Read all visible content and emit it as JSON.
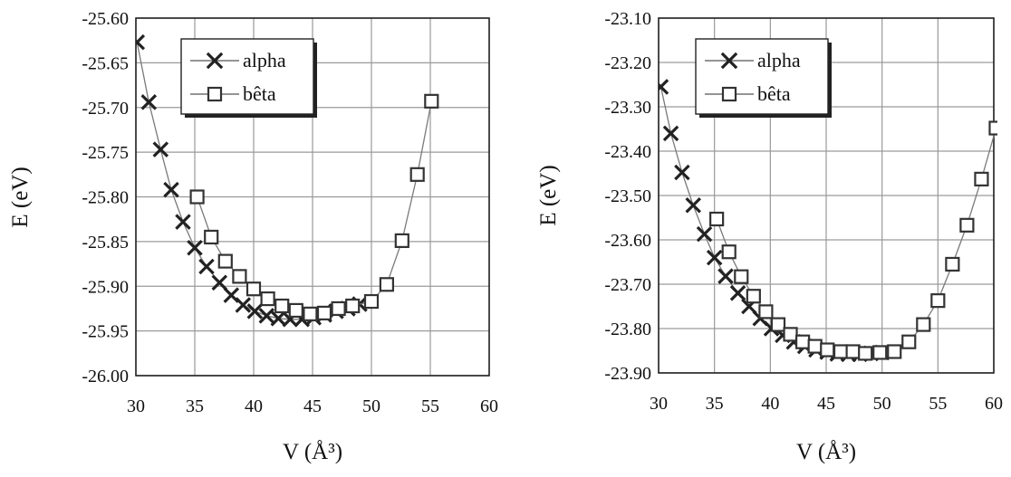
{
  "chart_data": [
    {
      "type": "scatter",
      "xlabel": "V (Å³)",
      "ylabel": "E (eV)",
      "xlim": [
        30,
        60
      ],
      "ylim": [
        -26.0,
        -25.6
      ],
      "xticks": [
        "30",
        "35",
        "40",
        "45",
        "50",
        "55",
        "60"
      ],
      "yticks": [
        "-25.60",
        "-25.65",
        "-25.70",
        "-25.75",
        "-25.80",
        "-25.85",
        "-25.90",
        "-25.95",
        "-26.00"
      ],
      "grid": true,
      "legend_position": "top-left",
      "series": [
        {
          "name": "alpha",
          "marker": "x",
          "x": [
            30.1,
            31.1,
            32.1,
            33.0,
            34.0,
            35.0,
            36.0,
            37.1,
            38.1,
            39.1,
            40.1,
            41.1,
            42.1,
            43.1,
            44.1,
            45.1,
            46.0,
            47.0,
            48.0,
            49.0
          ],
          "y": [
            -25.627,
            -25.694,
            -25.747,
            -25.792,
            -25.828,
            -25.857,
            -25.878,
            -25.896,
            -25.91,
            -25.921,
            -25.928,
            -25.933,
            -25.936,
            -25.937,
            -25.937,
            -25.935,
            -25.932,
            -25.928,
            -25.925,
            -25.92
          ]
        },
        {
          "name": "bêta",
          "marker": "square",
          "x": [
            35.2,
            36.4,
            37.6,
            38.8,
            40.0,
            41.2,
            42.4,
            43.6,
            44.8,
            46.0,
            47.2,
            48.4,
            50.0,
            51.3,
            52.6,
            53.9,
            55.1
          ],
          "y": [
            -25.8,
            -25.845,
            -25.872,
            -25.889,
            -25.903,
            -25.914,
            -25.922,
            -25.927,
            -25.931,
            -25.93,
            -25.925,
            -25.922,
            -25.917,
            -25.898,
            -25.849,
            -25.775,
            -25.693
          ]
        }
      ]
    },
    {
      "type": "scatter",
      "xlabel": "V (Å³)",
      "ylabel": "E (eV)",
      "xlim": [
        30,
        60
      ],
      "ylim": [
        -23.9,
        -23.1
      ],
      "xticks": [
        "30",
        "35",
        "40",
        "45",
        "50",
        "55",
        "60"
      ],
      "yticks": [
        "-23.10",
        "-23.20",
        "-23.30",
        "-23.40",
        "-23.50",
        "-23.60",
        "-23.70",
        "-23.80",
        "-23.90"
      ],
      "grid": true,
      "legend_position": "top-left",
      "series": [
        {
          "name": "alpha",
          "marker": "x",
          "x": [
            30.2,
            31.1,
            32.1,
            33.1,
            34.1,
            35.0,
            36.0,
            37.1,
            38.1,
            39.1,
            40.1,
            41.1,
            42.1,
            43.1,
            44.1,
            45.1,
            46.0,
            47.0,
            48.0,
            49.0,
            50.0
          ],
          "y": [
            -23.255,
            -23.36,
            -23.448,
            -23.522,
            -23.587,
            -23.64,
            -23.682,
            -23.72,
            -23.75,
            -23.777,
            -23.8,
            -23.815,
            -23.83,
            -23.84,
            -23.848,
            -23.853,
            -23.857,
            -23.858,
            -23.858,
            -23.856,
            -23.854
          ]
        },
        {
          "name": "bêta",
          "marker": "square",
          "x": [
            35.2,
            36.3,
            37.4,
            38.5,
            39.6,
            40.7,
            41.8,
            42.9,
            44.0,
            45.1,
            46.3,
            47.4,
            48.5,
            49.8,
            51.1,
            52.4,
            53.7,
            55.0,
            56.3,
            57.6,
            58.9,
            60.2
          ],
          "y": [
            -23.553,
            -23.627,
            -23.683,
            -23.727,
            -23.762,
            -23.791,
            -23.813,
            -23.83,
            -23.84,
            -23.848,
            -23.852,
            -23.852,
            -23.856,
            -23.854,
            -23.852,
            -23.83,
            -23.791,
            -23.737,
            -23.655,
            -23.567,
            -23.463,
            -23.348
          ]
        }
      ]
    }
  ]
}
